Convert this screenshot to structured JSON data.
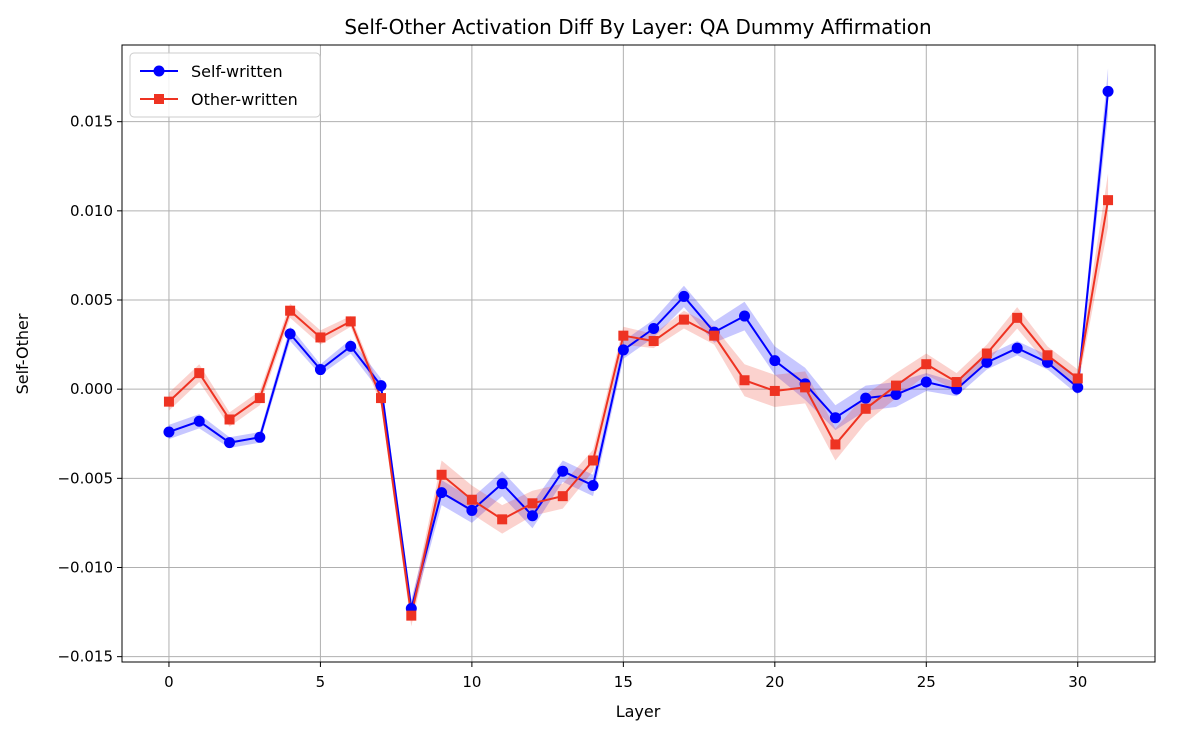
{
  "chart_data": {
    "type": "line",
    "title": "Self-Other Activation Diff By Layer: QA Dummy Affirmation",
    "xlabel": "Layer",
    "ylabel": "Self-Other",
    "xlim": [
      -1.55,
      32.55
    ],
    "ylim": [
      -0.0153,
      0.0193
    ],
    "xticks": [
      0,
      5,
      10,
      15,
      20,
      25,
      30
    ],
    "xtick_labels": [
      "0",
      "5",
      "10",
      "15",
      "20",
      "25",
      "30"
    ],
    "yticks": [
      -0.015,
      -0.01,
      -0.005,
      0.0,
      0.005,
      0.01,
      0.015
    ],
    "ytick_labels": [
      "−0.015",
      "−0.010",
      "−0.005",
      "0.000",
      "0.005",
      "0.010",
      "0.015"
    ],
    "grid": true,
    "legend_position": "top-left",
    "x": [
      0,
      1,
      2,
      3,
      4,
      5,
      6,
      7,
      8,
      9,
      10,
      11,
      12,
      13,
      14,
      15,
      16,
      17,
      18,
      19,
      20,
      21,
      22,
      23,
      24,
      25,
      26,
      27,
      28,
      29,
      30,
      31
    ],
    "series": [
      {
        "name": "Self-written",
        "color": "#0000ff",
        "marker": "circle",
        "values": [
          -0.0024,
          -0.0018,
          -0.003,
          -0.0027,
          0.0031,
          0.0011,
          0.0024,
          0.0002,
          -0.0123,
          -0.0058,
          -0.0068,
          -0.0053,
          -0.0071,
          -0.0046,
          -0.0054,
          0.0022,
          0.0034,
          0.0052,
          0.0032,
          0.0041,
          0.0016,
          0.0003,
          -0.0016,
          -0.0005,
          -0.0003,
          0.0004,
          0.0,
          0.0015,
          0.0023,
          0.0015,
          0.0001,
          0.0167
        ],
        "band": [
          0.0004,
          0.0004,
          0.0003,
          0.0003,
          0.0004,
          0.0003,
          0.0004,
          0.0004,
          0.0005,
          0.0007,
          0.0007,
          0.0007,
          0.0007,
          0.0006,
          0.0006,
          0.0005,
          0.0005,
          0.0006,
          0.0006,
          0.0008,
          0.0008,
          0.0009,
          0.0007,
          0.0007,
          0.0007,
          0.0005,
          0.0004,
          0.0004,
          0.0004,
          0.0004,
          0.0004,
          0.0013
        ]
      },
      {
        "name": "Other-written",
        "color": "#ee3322",
        "marker": "square",
        "values": [
          -0.0007,
          0.0009,
          -0.0017,
          -0.0005,
          0.0044,
          0.0029,
          0.0038,
          -0.0005,
          -0.0127,
          -0.0048,
          -0.0062,
          -0.0073,
          -0.0064,
          -0.006,
          -0.004,
          0.003,
          0.0027,
          0.0039,
          0.003,
          0.0005,
          -0.0001,
          0.0001,
          -0.0031,
          -0.0011,
          0.0002,
          0.0014,
          0.0004,
          0.002,
          0.004,
          0.0019,
          0.0006,
          0.0106
        ],
        "band": [
          0.0005,
          0.0005,
          0.0004,
          0.0004,
          0.0004,
          0.0004,
          0.0003,
          0.0004,
          0.0006,
          0.0008,
          0.0008,
          0.0008,
          0.0007,
          0.0007,
          0.0006,
          0.0005,
          0.0004,
          0.0005,
          0.0005,
          0.0009,
          0.0009,
          0.0009,
          0.0009,
          0.0008,
          0.0007,
          0.0006,
          0.0005,
          0.0005,
          0.0006,
          0.0005,
          0.0005,
          0.0015
        ]
      }
    ]
  }
}
